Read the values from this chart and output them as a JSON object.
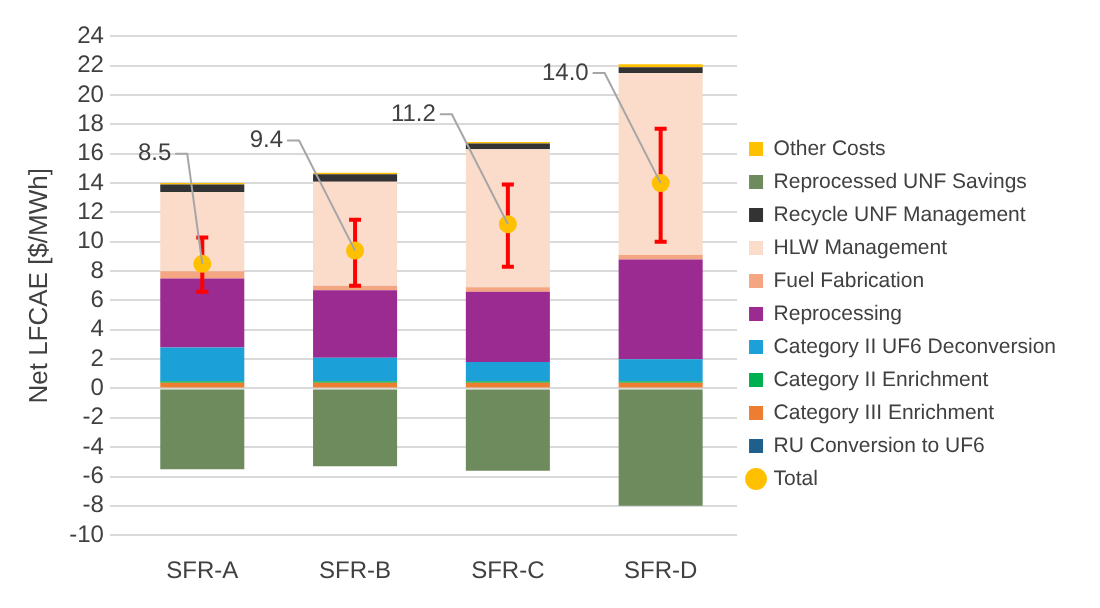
{
  "chart_data": {
    "type": "bar",
    "stacked": true,
    "ylabel": "Net LFCAE [$/MWh]",
    "categories": [
      "SFR-A",
      "SFR-B",
      "SFR-C",
      "SFR-D"
    ],
    "series": [
      {
        "name": "RU Conversion to UF6",
        "color": "#1f5f8b",
        "values": [
          null,
          null,
          null,
          null
        ]
      },
      {
        "name": "Category III Enrichment",
        "color": "#ed7d31",
        "values": [
          0.4,
          0.4,
          0.4,
          0.4
        ]
      },
      {
        "name": "Category II Enrichment",
        "color": "#00b050",
        "values": [
          0.1,
          0.1,
          0.1,
          0.1
        ]
      },
      {
        "name": "Category II UF6 Deconversion",
        "color": "#1ba1d8",
        "values": [
          2.3,
          1.6,
          1.3,
          1.5
        ]
      },
      {
        "name": "Reprocessing",
        "color": "#9b2a91",
        "values": [
          4.7,
          4.6,
          4.8,
          6.8
        ]
      },
      {
        "name": "Fuel Fabrication",
        "color": "#f4a582",
        "values": [
          0.5,
          0.3,
          0.3,
          0.3
        ]
      },
      {
        "name": "HLW Management",
        "color": "#fbdcca",
        "values": [
          5.4,
          7.1,
          9.4,
          12.4
        ]
      },
      {
        "name": "Recycle UNF Management",
        "color": "#333333",
        "values": [
          0.5,
          0.5,
          0.4,
          0.4
        ]
      },
      {
        "name": "Reprocessed UNF Savings",
        "color": "#6e8b5e",
        "values": [
          -5.5,
          -5.3,
          -5.6,
          -8.0
        ]
      },
      {
        "name": "Other Costs",
        "color": "#ffc000",
        "values": [
          0.1,
          0.1,
          0.1,
          0.2
        ]
      },
      {
        "name": "Total",
        "type": "scatter",
        "color": "#ffc000",
        "marker": "circle",
        "x": [
          "SFR-A",
          "SFR-B",
          "SFR-C",
          "SFR-D"
        ],
        "values": [
          8.5,
          9.4,
          11.2,
          14.0
        ],
        "errors": [
          [
            6.6,
            10.3
          ],
          [
            7.0,
            11.5
          ],
          [
            8.3,
            13.9
          ],
          [
            10.0,
            17.7
          ]
        ],
        "value_labels": [
          "8.5",
          "9.4",
          "11.2",
          "14.0"
        ]
      }
    ],
    "ylim": [
      -10,
      24
    ],
    "yticks": [
      -10,
      -8,
      -6,
      -4,
      -2,
      0,
      2,
      4,
      6,
      8,
      10,
      12,
      14,
      16,
      18,
      20,
      22,
      24
    ],
    "grid": "y",
    "legend": "right"
  }
}
